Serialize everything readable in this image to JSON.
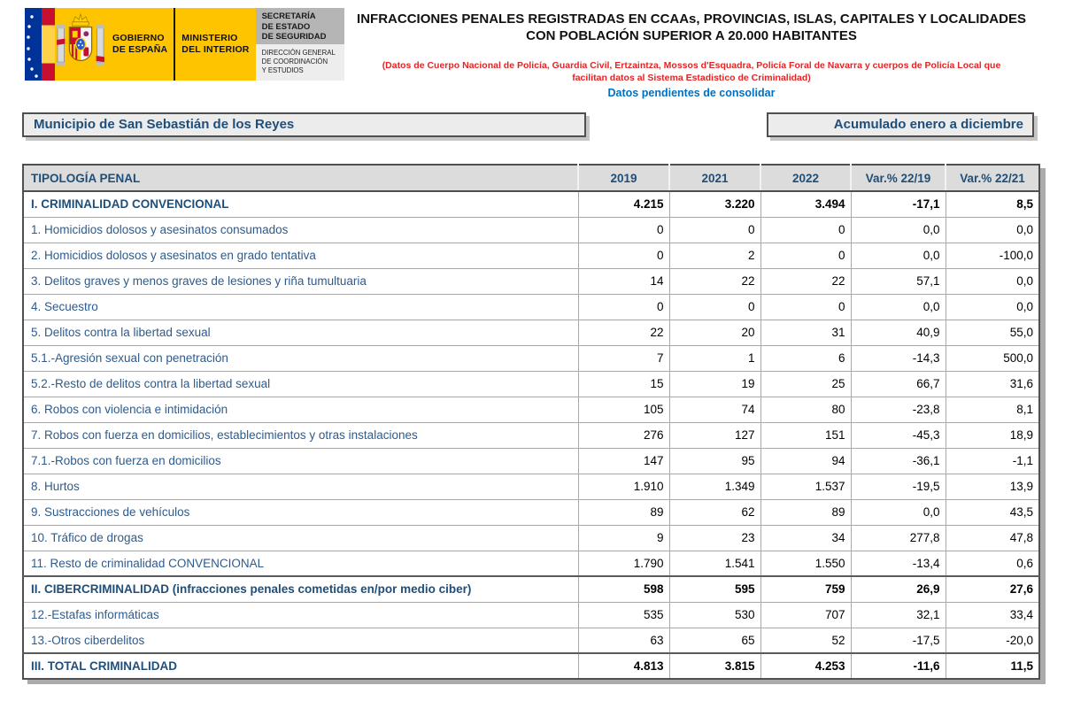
{
  "logo": {
    "gobierno_line1": "GOBIERNO",
    "gobierno_line2": "DE ESPAÑA",
    "ministerio_line1": "MINISTERIO",
    "ministerio_line2": "DEL INTERIOR",
    "secretaria_lines": [
      "SECRETARÍA",
      "DE ESTADO",
      "DE SEGURIDAD"
    ],
    "direccion_lines": [
      "DIRECCIÓN GENERAL",
      "DE COORDINACIÓN",
      "Y ESTUDIOS"
    ]
  },
  "header": {
    "title": "INFRACCIONES PENALES REGISTRADAS EN CCAAs, PROVINCIAS, ISLAS, CAPITALES Y LOCALIDADES CON POBLACIÓN SUPERIOR A 20.000 HABITANTES",
    "source_note": "(Datos de Cuerpo Nacional de Policía, Guardia Civil, Ertzaintza, Mossos d'Esquadra, Policía Foral de Navarra y cuerpos de Policía Local que facilitan datos al Sistema Estadistico de Criminalidad)",
    "status_note": "Datos pendientes de consolidar"
  },
  "filters": {
    "municipio": "Municipio de San Sebastián de los Reyes",
    "periodo": "Acumulado enero a diciembre"
  },
  "table": {
    "columns": [
      "TIPOLOGÍA PENAL",
      "2019",
      "2021",
      "2022",
      "Var.% 22/19",
      "Var.% 22/21"
    ],
    "rows": [
      {
        "label": "I. CRIMINALIDAD CONVENCIONAL",
        "values": [
          "4.215",
          "3.220",
          "3.494",
          "-17,1",
          "8,5"
        ],
        "bold": true
      },
      {
        "label": "1. Homicidios dolosos y asesinatos consumados",
        "values": [
          "0",
          "0",
          "0",
          "0,0",
          "0,0"
        ],
        "bold": false
      },
      {
        "label": "2. Homicidios dolosos y asesinatos en grado tentativa",
        "values": [
          "0",
          "2",
          "0",
          "0,0",
          "-100,0"
        ],
        "bold": false
      },
      {
        "label": "3. Delitos graves y menos graves de lesiones y riña tumultuaria",
        "values": [
          "14",
          "22",
          "22",
          "57,1",
          "0,0"
        ],
        "bold": false
      },
      {
        "label": "4. Secuestro",
        "values": [
          "0",
          "0",
          "0",
          "0,0",
          "0,0"
        ],
        "bold": false
      },
      {
        "label": "5. Delitos contra la libertad sexual",
        "values": [
          "22",
          "20",
          "31",
          "40,9",
          "55,0"
        ],
        "bold": false
      },
      {
        "label": "5.1.-Agresión sexual con penetración",
        "values": [
          "7",
          "1",
          "6",
          "-14,3",
          "500,0"
        ],
        "bold": false
      },
      {
        "label": "5.2.-Resto de delitos contra la libertad sexual",
        "values": [
          "15",
          "19",
          "25",
          "66,7",
          "31,6"
        ],
        "bold": false
      },
      {
        "label": "6. Robos con violencia e intimidación",
        "values": [
          "105",
          "74",
          "80",
          "-23,8",
          "8,1"
        ],
        "bold": false
      },
      {
        "label": "7. Robos con fuerza en domicilios, establecimientos y otras instalaciones",
        "values": [
          "276",
          "127",
          "151",
          "-45,3",
          "18,9"
        ],
        "bold": false
      },
      {
        "label": "7.1.-Robos con fuerza en domicilios",
        "values": [
          "147",
          "95",
          "94",
          "-36,1",
          "-1,1"
        ],
        "bold": false
      },
      {
        "label": "8. Hurtos",
        "values": [
          "1.910",
          "1.349",
          "1.537",
          "-19,5",
          "13,9"
        ],
        "bold": false
      },
      {
        "label": "9. Sustracciones de vehículos",
        "values": [
          "89",
          "62",
          "89",
          "0,0",
          "43,5"
        ],
        "bold": false
      },
      {
        "label": "10. Tráfico de drogas",
        "values": [
          "9",
          "23",
          "34",
          "277,8",
          "47,8"
        ],
        "bold": false
      },
      {
        "label": "11. Resto de criminalidad CONVENCIONAL",
        "values": [
          "1.790",
          "1.541",
          "1.550",
          "-13,4",
          "0,6"
        ],
        "bold": false
      },
      {
        "label": "II. CIBERCRIMINALIDAD (infracciones penales cometidas en/por medio ciber)",
        "values": [
          "598",
          "595",
          "759",
          "26,9",
          "27,6"
        ],
        "bold": true
      },
      {
        "label": "12.-Estafas informáticas",
        "values": [
          "535",
          "530",
          "707",
          "32,1",
          "33,4"
        ],
        "bold": false
      },
      {
        "label": "13.-Otros ciberdelitos",
        "values": [
          "63",
          "65",
          "52",
          "-17,5",
          "-20,0"
        ],
        "bold": false
      },
      {
        "label": "III. TOTAL CRIMINALIDAD",
        "values": [
          "4.813",
          "3.815",
          "4.253",
          "-11,6",
          "11,5"
        ],
        "bold": true
      }
    ]
  },
  "colors": {
    "eu_blue": "#003399",
    "flag_red": "#c8102e",
    "flag_yellow": "#ffd24a",
    "logo_yellow": "#ffc400",
    "note_red": "#e32424",
    "note_blue": "#0070c0",
    "label_blue": "#2e5b8c",
    "label_blue_bold": "#1f4e79",
    "header_bg": "#dcdcdc",
    "box_bg": "#ececec",
    "grid_gray": "#a8a8a8"
  }
}
